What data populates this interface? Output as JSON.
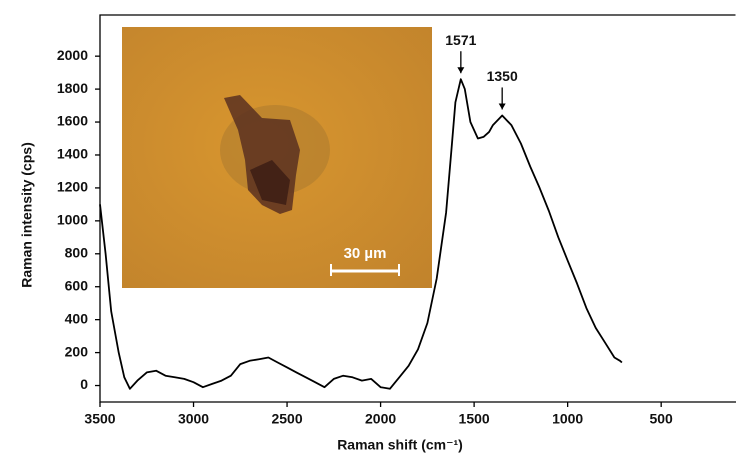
{
  "chart_data": {
    "type": "line",
    "x_label": "Raman shift (cm⁻¹)",
    "y_label": "Raman intensity (cps)",
    "x": [
      3500,
      3470,
      3440,
      3400,
      3370,
      3340,
      3300,
      3250,
      3200,
      3150,
      3100,
      3050,
      3000,
      2950,
      2900,
      2850,
      2800,
      2750,
      2700,
      2650,
      2600,
      2550,
      2500,
      2450,
      2400,
      2350,
      2300,
      2250,
      2200,
      2150,
      2100,
      2050,
      2000,
      1950,
      1900,
      1850,
      1800,
      1750,
      1700,
      1650,
      1620,
      1600,
      1571,
      1550,
      1520,
      1480,
      1450,
      1420,
      1400,
      1350,
      1300,
      1250,
      1200,
      1150,
      1100,
      1050,
      1000,
      950,
      900,
      850,
      800,
      750,
      720,
      710
    ],
    "series": [
      {
        "color": "#000000",
        "values": [
          1100,
          800,
          450,
          200,
          50,
          -20,
          30,
          80,
          90,
          60,
          50,
          40,
          20,
          -10,
          10,
          30,
          60,
          130,
          150,
          160,
          170,
          140,
          110,
          80,
          50,
          20,
          -10,
          40,
          60,
          50,
          30,
          40,
          -10,
          -20,
          50,
          120,
          220,
          380,
          650,
          1050,
          1450,
          1720,
          1860,
          1800,
          1600,
          1500,
          1510,
          1540,
          1580,
          1640,
          1580,
          1470,
          1330,
          1200,
          1060,
          900,
          760,
          620,
          470,
          350,
          260,
          170,
          150,
          140
        ]
      }
    ],
    "xlim": [
      3500,
      100
    ],
    "ylim": [
      -100,
      2250
    ],
    "xticks": [
      3500,
      3000,
      2500,
      2000,
      1500,
      1000,
      500
    ],
    "yticks": [
      0,
      200,
      400,
      600,
      800,
      1000,
      1200,
      1400,
      1600,
      1800,
      2000
    ],
    "annotations": [
      {
        "text": "1571",
        "x": 1571,
        "y": 1860
      },
      {
        "text": "1350",
        "x": 1350,
        "y": 1640
      }
    ],
    "inset_scale_label": "30 µm"
  }
}
